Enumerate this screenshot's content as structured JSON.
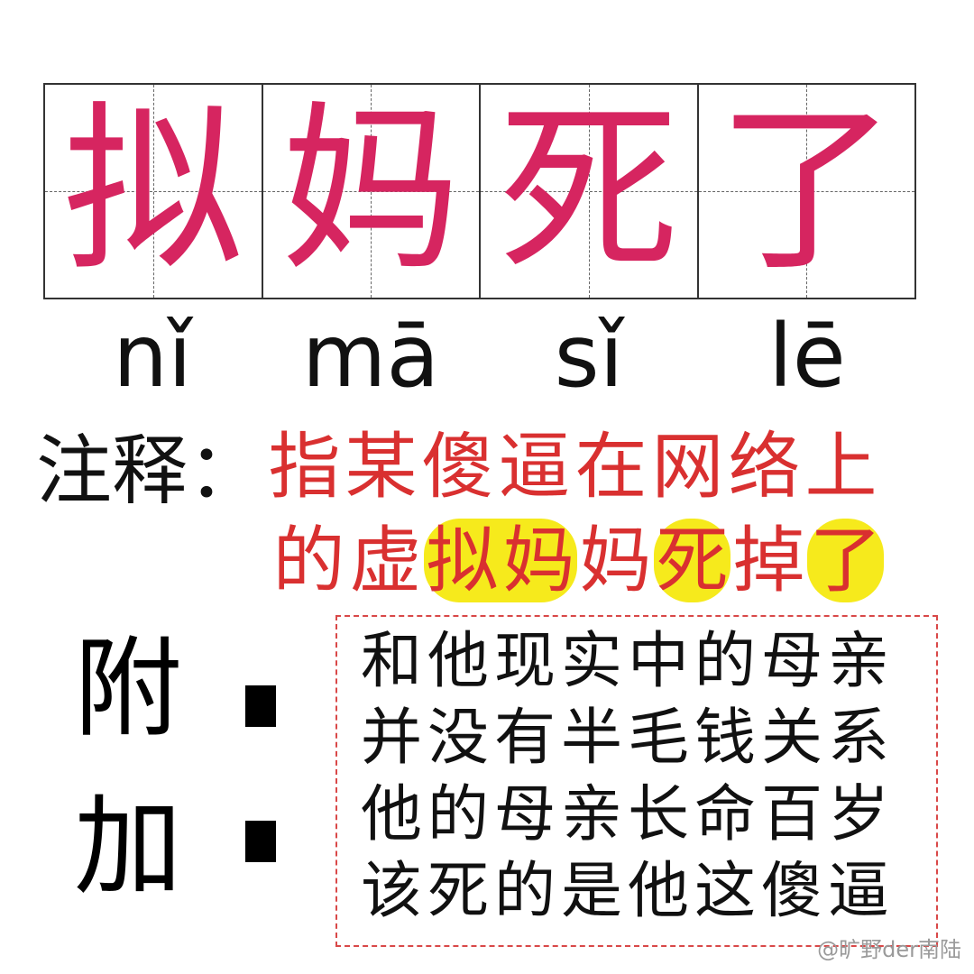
{
  "title": {
    "chars": [
      "拟",
      "妈",
      "死",
      "了"
    ],
    "color": "#d62560"
  },
  "pinyin": [
    "nǐ",
    "mā",
    "sǐ",
    "lē"
  ],
  "annotation": {
    "label": "注释：",
    "line1": [
      "指",
      "某",
      "傻",
      "逼",
      "在",
      "网",
      "络",
      "上"
    ],
    "line2": [
      "的",
      "虚",
      "拟",
      "妈",
      "妈",
      "死",
      "掉",
      "了"
    ],
    "color": "#d93030",
    "highlight_color": "#f6ea1c"
  },
  "appendix": {
    "char1": "附",
    "char2": "加",
    "lines": [
      "和他现实中的母亲",
      "并没有半毛钱关系",
      "他的母亲长命百岁",
      "该死的是他这傻逼"
    ],
    "border_color": "#d94848"
  },
  "watermark": "@旷野der南陆"
}
